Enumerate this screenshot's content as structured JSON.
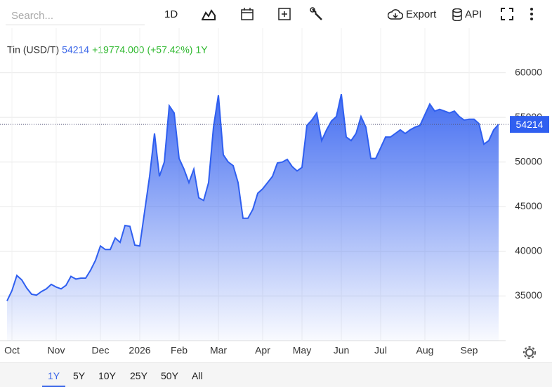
{
  "toolbar": {
    "search_placeholder": "Search...",
    "interval": "1D",
    "export": "Export",
    "api": "API"
  },
  "ranges": [
    "1Y",
    "5Y",
    "10Y",
    "25Y",
    "50Y",
    "All"
  ],
  "selected_range": "1Y",
  "chart_data": {
    "type": "area",
    "title": "Tin (USD/T)",
    "last_value": 54214,
    "change": "+19774.000",
    "change_percent": "(+57.42%)",
    "period": "1Y",
    "color": "#2f5ff0",
    "categories": [
      null,
      "Oct",
      null,
      null,
      null,
      null,
      null,
      null,
      null,
      null,
      "Nov",
      null,
      null,
      null,
      null,
      null,
      null,
      null,
      null,
      "Dec",
      null,
      null,
      null,
      null,
      null,
      null,
      null,
      "2026",
      null,
      null,
      null,
      null,
      null,
      null,
      null,
      "Feb",
      null,
      null,
      null,
      null,
      null,
      null,
      null,
      "Mar",
      null,
      null,
      null,
      null,
      null,
      null,
      null,
      null,
      "Apr",
      null,
      null,
      null,
      null,
      null,
      null,
      null,
      "May",
      null,
      null,
      null,
      null,
      null,
      null,
      null,
      "Jun",
      null,
      null,
      null,
      null,
      null,
      null,
      null,
      "Jul",
      null,
      null,
      null,
      null,
      null,
      null,
      null,
      null,
      "Aug",
      null,
      null,
      null,
      null,
      null,
      null,
      null,
      null,
      "Sep",
      null,
      null,
      null,
      null,
      null,
      null
    ],
    "values": [
      34450,
      35600,
      37300,
      36800,
      35900,
      35200,
      35100,
      35500,
      35800,
      36300,
      36000,
      35800,
      36200,
      37200,
      36900,
      37000,
      37000,
      37900,
      39000,
      40600,
      40200,
      40200,
      41500,
      41000,
      42900,
      42800,
      40700,
      40600,
      44500,
      48400,
      53200,
      48400,
      50000,
      56300,
      55500,
      50400,
      49200,
      47700,
      49200,
      46000,
      45700,
      47700,
      53900,
      57500,
      50800,
      50000,
      49600,
      47700,
      43700,
      43700,
      44700,
      46500,
      47000,
      47700,
      48400,
      49900,
      50000,
      50300,
      49500,
      49000,
      49400,
      54100,
      54700,
      55500,
      52400,
      53600,
      54600,
      55100,
      57600,
      52800,
      52400,
      53200,
      55100,
      53900,
      50400,
      50400,
      51600,
      52800,
      52800,
      53200,
      53600,
      53200,
      53600,
      53900,
      54100,
      55300,
      56500,
      55700,
      55900,
      55700,
      55500,
      55700,
      55100,
      54700,
      54800,
      54800,
      54300,
      52000,
      52400,
      53600,
      54214
    ],
    "ylim": [
      30000,
      65000
    ],
    "yticks": [
      35000,
      40000,
      45000,
      50000,
      55000,
      60000
    ],
    "grid": true
  }
}
